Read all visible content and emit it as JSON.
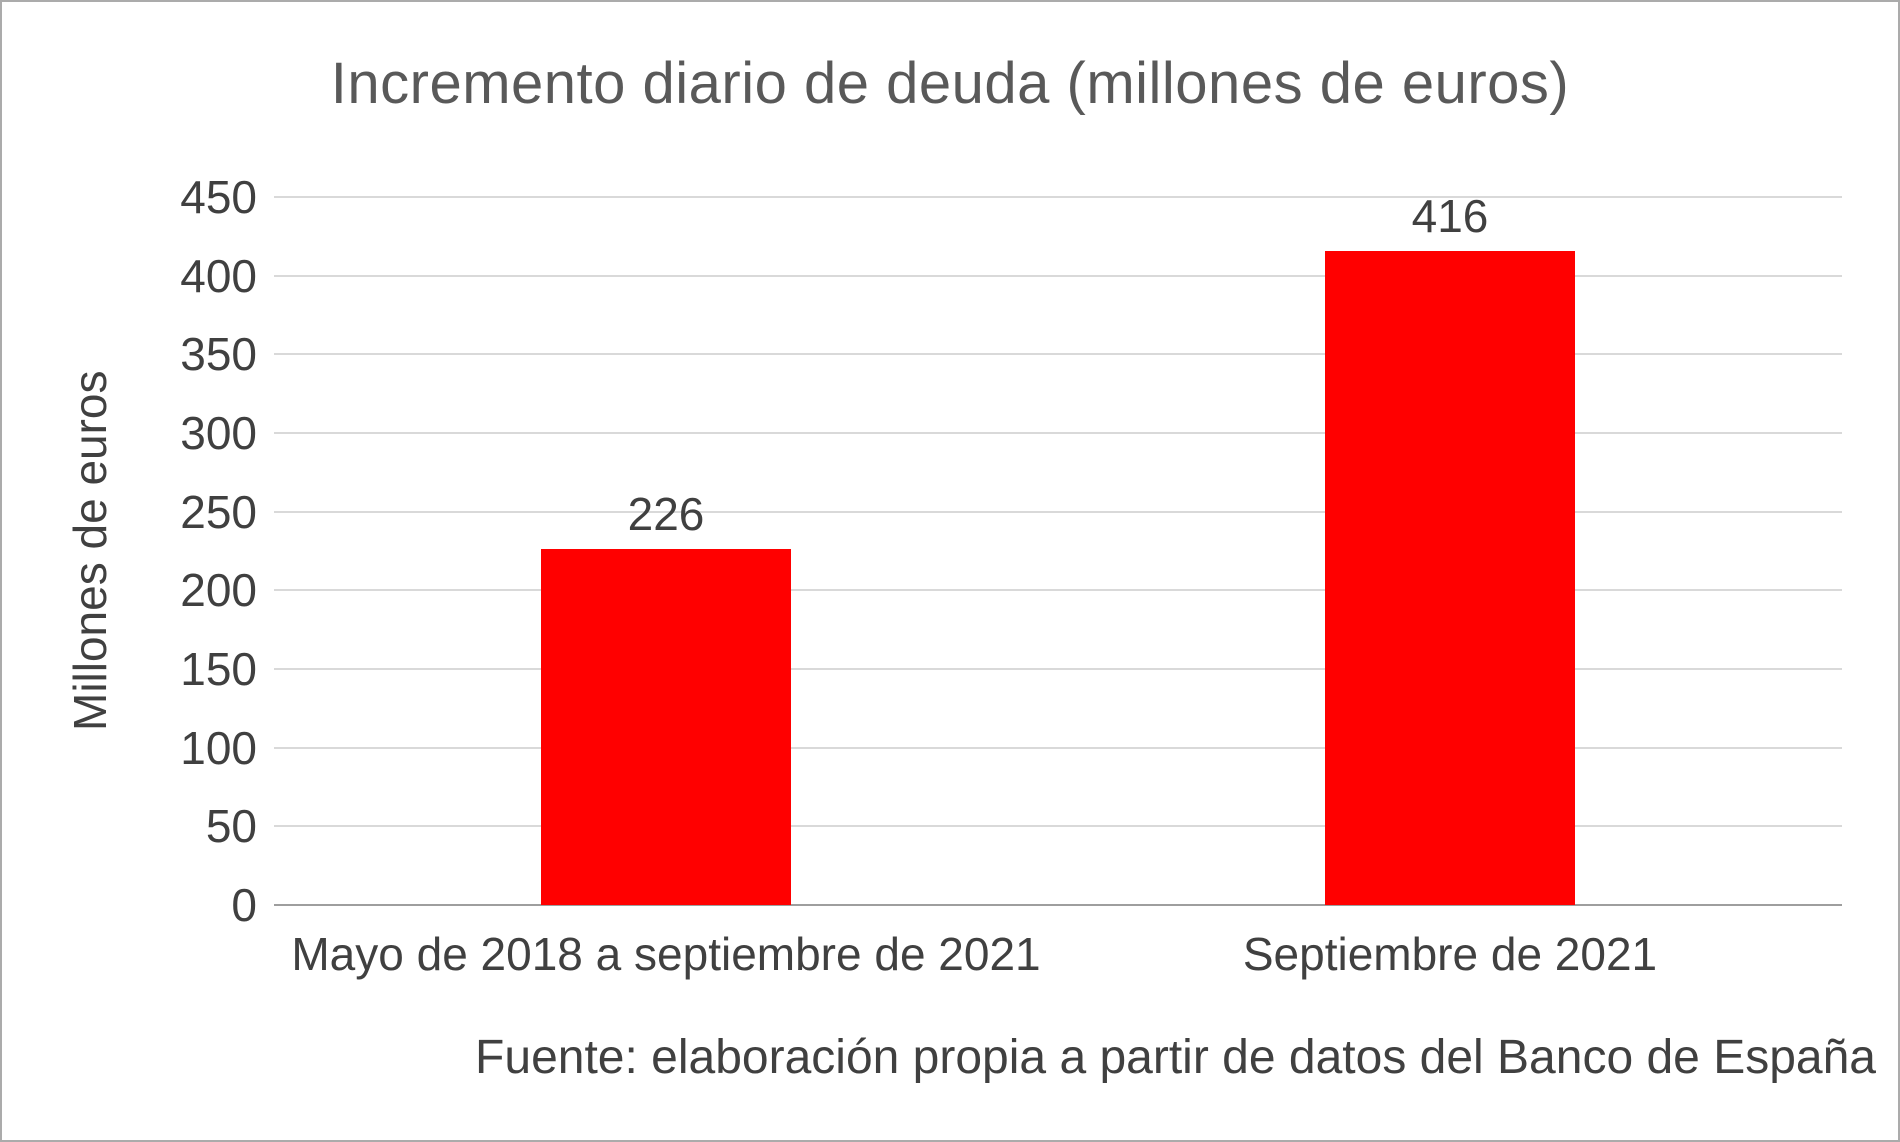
{
  "chart_data": {
    "type": "bar",
    "title": "Incremento diario de deuda (millones de euros)",
    "ylabel": "Millones de euros",
    "xlabel": "",
    "categories": [
      "Mayo de 2018 a septiembre de 2021",
      "Septiembre de 2021"
    ],
    "values": [
      226,
      416
    ],
    "yticks": [
      0,
      50,
      100,
      150,
      200,
      250,
      300,
      350,
      400,
      450
    ],
    "ylim": [
      0,
      450
    ],
    "bar_color": "#ff0000",
    "grid": true,
    "legend": "none",
    "source": "Fuente: elaboración propia a partir de datos del Banco de España"
  }
}
